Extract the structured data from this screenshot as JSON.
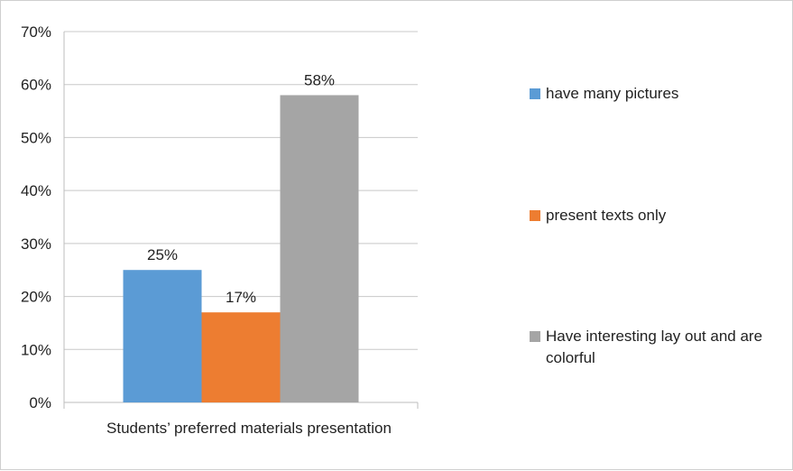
{
  "chart_data": {
    "type": "bar",
    "categories": [
      "Students’ preferred materials presentation"
    ],
    "series": [
      {
        "name": "have many pictures",
        "values": [
          25
        ],
        "color": "#5B9BD5",
        "label": "25%"
      },
      {
        "name": "present texts only",
        "values": [
          17
        ],
        "color": "#ED7D31",
        "label": "17%"
      },
      {
        "name": "Have interesting lay out and are colorful",
        "values": [
          58
        ],
        "color": "#A5A5A5",
        "label": "58%"
      }
    ],
    "ylim": [
      0,
      70
    ],
    "yticks": [
      0,
      10,
      20,
      30,
      40,
      50,
      60,
      70
    ],
    "ytick_labels": [
      "0%",
      "10%",
      "20%",
      "30%",
      "40%",
      "50%",
      "60%",
      "70%"
    ],
    "grid": true,
    "legend_position": "right"
  }
}
